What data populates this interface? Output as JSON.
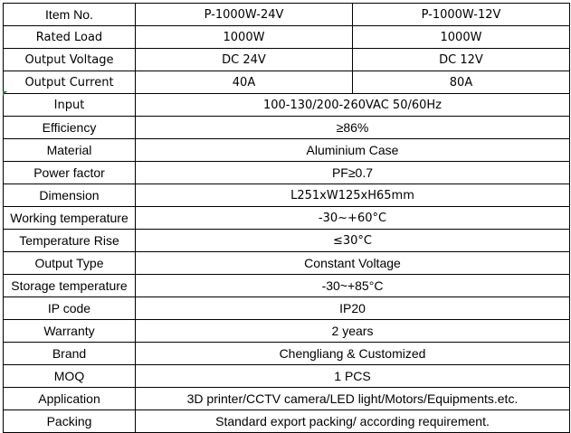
{
  "rows": [
    {
      "label": "Item No.",
      "values": [
        "P-1000W-24V",
        "P-1000W-12V"
      ]
    },
    {
      "label": "Rated Load",
      "values": [
        "1000W",
        "1000W"
      ]
    },
    {
      "label": "Output Voltage",
      "values": [
        "DC 24V",
        "DC 12V"
      ]
    },
    {
      "label": "Output Current",
      "values": [
        "40A",
        "80A"
      ]
    },
    {
      "label": "Input",
      "values": [
        "100-130/200-260VAC 50/60Hz"
      ]
    },
    {
      "label": "Efficiency",
      "values": [
        "≥86%"
      ]
    },
    {
      "label": "Material",
      "values": [
        "Aluminium Case"
      ]
    },
    {
      "label": "Power factor",
      "values": [
        "PF≥0.7"
      ]
    },
    {
      "label": "Dimension",
      "values": [
        "L251xW125xH65mm"
      ]
    },
    {
      "label": "Working temperature",
      "values": [
        "-30~+60°C"
      ]
    },
    {
      "label": "Temperature Rise",
      "values": [
        "≤30°C"
      ]
    },
    {
      "label": "Output Type",
      "values": [
        "Constant Voltage"
      ]
    },
    {
      "label": "Storage temperature",
      "values": [
        "-30~+85°C"
      ]
    },
    {
      "label": "IP code",
      "values": [
        "IP20"
      ]
    },
    {
      "label": "Warranty",
      "values": [
        "2 years"
      ]
    },
    {
      "label": "Brand",
      "values": [
        "Chengliang & Customized"
      ]
    },
    {
      "label": "MOQ",
      "values": [
        "1 PCS"
      ]
    },
    {
      "label": "Application",
      "values": [
        "3D printer/CCTV camera/LED light/Motors/Equipments.etc."
      ]
    },
    {
      "label": "Packing",
      "values": [
        "Standard export packing/ according requirement."
      ]
    }
  ]
}
